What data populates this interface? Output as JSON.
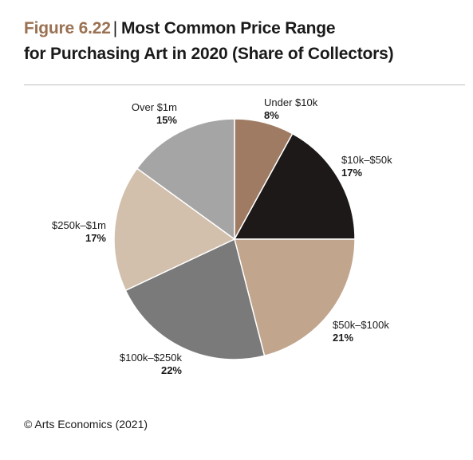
{
  "header": {
    "figure_number": "Figure 6.22",
    "title_line1": "Most Common Price Range",
    "title_line2": "for Purchasing Art in 2020 (Share of Collectors)"
  },
  "chart_data": {
    "type": "pie",
    "title": "Most Common Price Range for Purchasing Art in 2020 (Share of Collectors)",
    "start_angle_deg": 0,
    "direction": "clockwise",
    "slices": [
      {
        "label": "Under $10k",
        "value": 8,
        "value_label": "8%",
        "color": "#9e7b62"
      },
      {
        "label": "$10k–$50k",
        "value": 17,
        "value_label": "17%",
        "color": "#1c1918"
      },
      {
        "label": "$50k–$100k",
        "value": 21,
        "value_label": "21%",
        "color": "#c1a58d"
      },
      {
        "label": "$100k–$250k",
        "value": 22,
        "value_label": "22%",
        "color": "#7a7a7a"
      },
      {
        "label": "$250k–$1m",
        "value": 17,
        "value_label": "17%",
        "color": "#d2c0ad"
      },
      {
        "label": "Over $1m",
        "value": 15,
        "value_label": "15%",
        "color": "#a5a5a5"
      }
    ]
  },
  "footer": {
    "source": "© Arts Economics (2021)"
  }
}
